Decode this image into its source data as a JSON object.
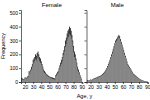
{
  "chart_data": [
    {
      "type": "bar",
      "title": "Female",
      "xlabel": "Age, y",
      "ylabel": "Frequency",
      "x": [
        16,
        17,
        18,
        19,
        20,
        21,
        22,
        23,
        24,
        25,
        26,
        27,
        28,
        29,
        30,
        31,
        32,
        33,
        34,
        35,
        36,
        37,
        38,
        39,
        40,
        41,
        42,
        43,
        44,
        45,
        46,
        47,
        48,
        49,
        50,
        51,
        52,
        53,
        54,
        55,
        56,
        57,
        58,
        59,
        60,
        61,
        62,
        63,
        64,
        65,
        66,
        67,
        68,
        69,
        70,
        71,
        72,
        73,
        74,
        75,
        76,
        77,
        78,
        79,
        80,
        81,
        82,
        83,
        84,
        85,
        86,
        87,
        88,
        89,
        90
      ],
      "series": [
        {
          "color": "#111111",
          "values": [
            30,
            25,
            20,
            22,
            35,
            28,
            32,
            40,
            45,
            80,
            70,
            90,
            110,
            130,
            160,
            170,
            180,
            200,
            190,
            210,
            220,
            200,
            180,
            170,
            150,
            130,
            110,
            90,
            80,
            70,
            60,
            55,
            50,
            45,
            40,
            38,
            36,
            34,
            32,
            30,
            28,
            26,
            50,
            60,
            70,
            80,
            100,
            120,
            140,
            160,
            180,
            210,
            230,
            260,
            300,
            320,
            350,
            370,
            380,
            400,
            390,
            370,
            340,
            300,
            260,
            220,
            200,
            170,
            140,
            110,
            90,
            70,
            50,
            35,
            20
          ]
        },
        {
          "color": "#999999",
          "values": [
            20,
            18,
            15,
            18,
            28,
            22,
            25,
            32,
            38,
            65,
            55,
            75,
            90,
            110,
            130,
            140,
            150,
            165,
            155,
            175,
            185,
            165,
            150,
            140,
            125,
            108,
            90,
            75,
            65,
            57,
            50,
            45,
            42,
            38,
            34,
            30,
            28,
            25,
            22,
            20,
            18,
            16,
            38,
            48,
            58,
            65,
            82,
            100,
            115,
            132,
            150,
            175,
            195,
            220,
            255,
            275,
            300,
            315,
            325,
            345,
            335,
            315,
            290,
            255,
            215,
            180,
            160,
            138,
            110,
            85,
            70,
            55,
            38,
            25,
            15
          ]
        }
      ],
      "xlim": [
        15,
        91
      ],
      "xticks": [
        20,
        30,
        40,
        50,
        60,
        70,
        80,
        90
      ],
      "ylim": [
        0,
        520
      ],
      "yticks": [
        0,
        100,
        200,
        300,
        400,
        500
      ]
    },
    {
      "type": "bar",
      "title": "Male",
      "x": [
        16,
        17,
        18,
        19,
        20,
        21,
        22,
        23,
        24,
        25,
        26,
        27,
        28,
        29,
        30,
        31,
        32,
        33,
        34,
        35,
        36,
        37,
        38,
        39,
        40,
        41,
        42,
        43,
        44,
        45,
        46,
        47,
        48,
        49,
        50,
        51,
        52,
        53,
        54,
        55,
        56,
        57,
        58,
        59,
        60,
        61,
        62,
        63,
        64,
        65,
        66,
        67,
        68,
        69,
        70,
        71,
        72,
        73,
        74,
        75,
        76,
        77,
        78,
        79,
        80,
        81,
        82,
        83,
        84,
        85,
        86,
        87,
        88,
        89,
        90
      ],
      "series": [
        {
          "color": "#111111",
          "values": [
            15,
            12,
            10,
            12,
            18,
            15,
            18,
            22,
            25,
            28,
            30,
            32,
            35,
            38,
            40,
            42,
            45,
            48,
            52,
            58,
            65,
            72,
            80,
            90,
            100,
            115,
            130,
            145,
            160,
            180,
            200,
            220,
            240,
            260,
            280,
            300,
            310,
            320,
            330,
            340,
            330,
            310,
            290,
            270,
            250,
            230,
            210,
            190,
            170,
            150,
            130,
            120,
            110,
            100,
            90,
            80,
            70,
            60,
            55,
            50,
            45,
            40,
            35,
            30,
            25,
            20,
            18,
            15,
            12,
            10,
            8,
            6,
            5,
            4,
            3
          ]
        },
        {
          "color": "#999999",
          "values": [
            12,
            10,
            8,
            10,
            15,
            12,
            15,
            18,
            22,
            24,
            26,
            28,
            30,
            32,
            35,
            38,
            40,
            42,
            45,
            50,
            57,
            65,
            72,
            82,
            92,
            105,
            120,
            132,
            148,
            165,
            185,
            205,
            225,
            245,
            265,
            285,
            295,
            305,
            315,
            320,
            315,
            295,
            275,
            258,
            238,
            218,
            198,
            178,
            160,
            140,
            122,
            112,
            102,
            92,
            82,
            72,
            62,
            54,
            48,
            44,
            40,
            36,
            30,
            26,
            22,
            18,
            15,
            12,
            10,
            8,
            7,
            5,
            4,
            3,
            2
          ]
        }
      ],
      "xlim": [
        15,
        91
      ],
      "xticks": [
        20,
        30,
        40,
        50,
        60,
        70,
        80,
        90
      ],
      "ylim": [
        0,
        520
      ],
      "yticks": [
        0,
        100,
        200,
        300,
        400,
        500
      ],
      "tick_labels": "x"
    }
  ]
}
